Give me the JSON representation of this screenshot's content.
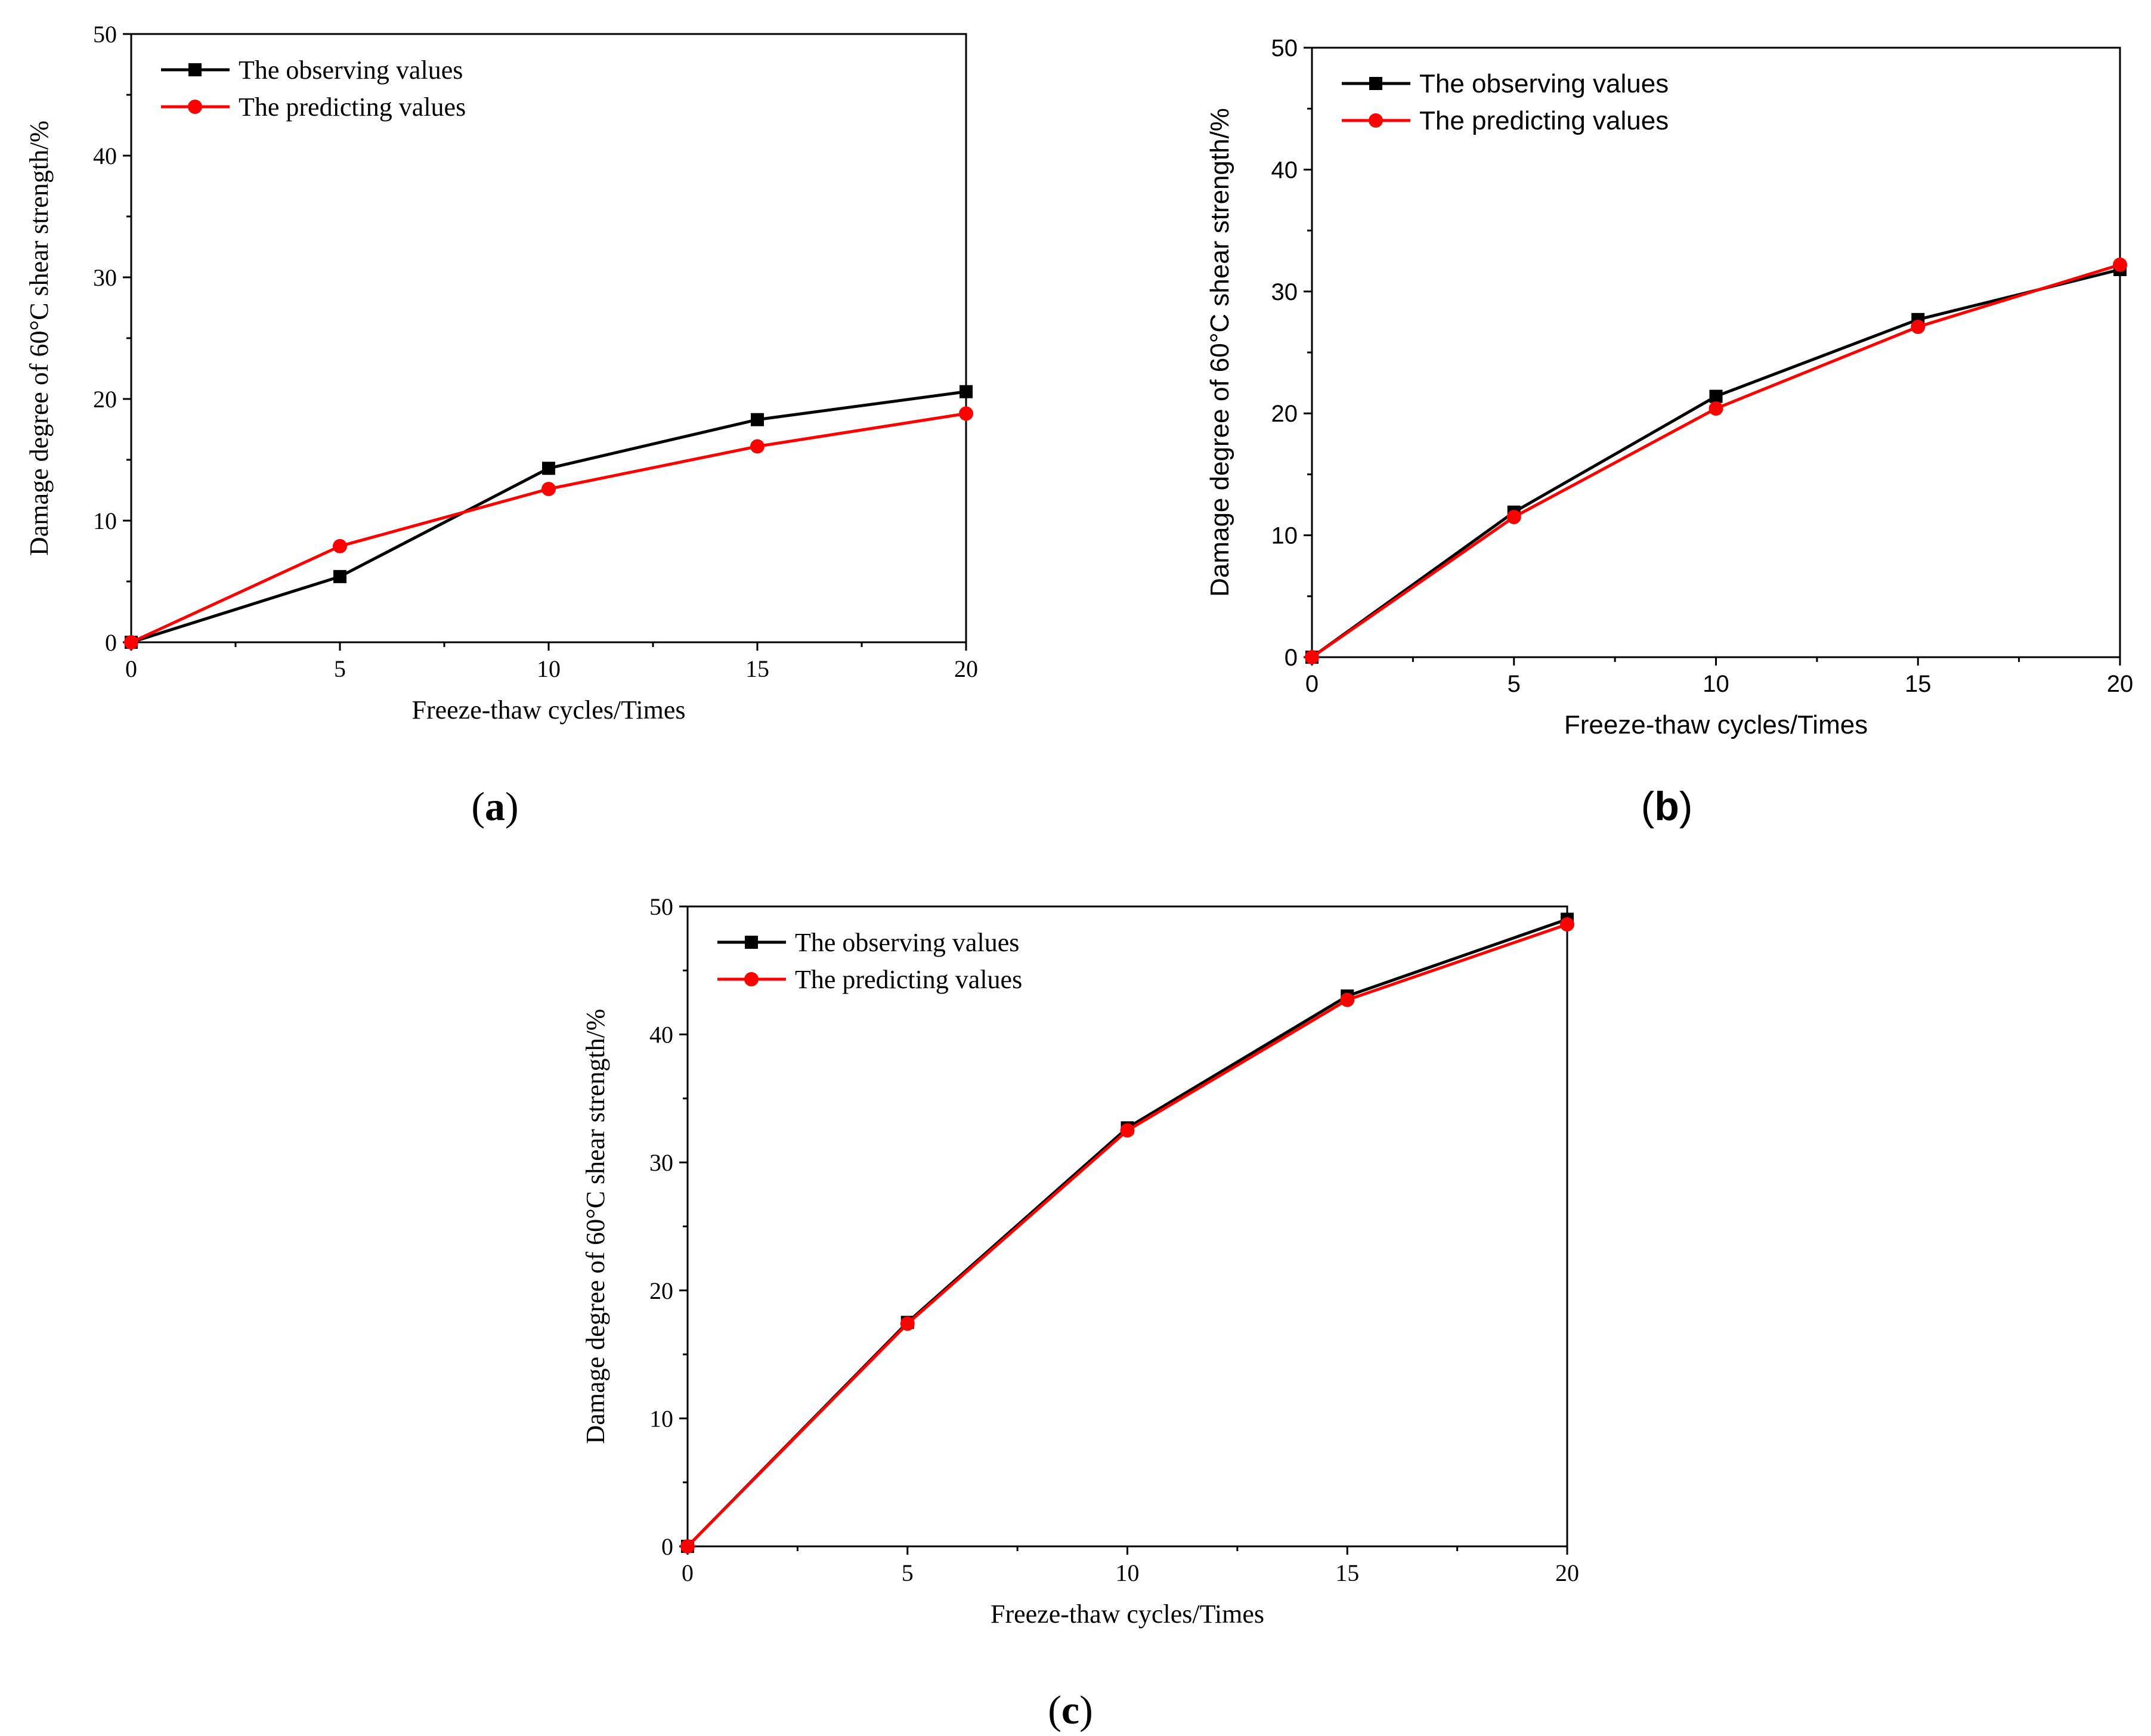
{
  "chart_data": [
    {
      "panel": "a",
      "type": "line",
      "x": [
        0,
        5,
        10,
        15,
        20
      ],
      "series": [
        {
          "name": "The observing values",
          "color": "#000000",
          "marker": "square",
          "values": [
            0,
            5.4,
            14.3,
            18.3,
            20.6
          ]
        },
        {
          "name": "The predicting values",
          "color": "#ff0000",
          "marker": "circle",
          "values": [
            0,
            7.9,
            12.6,
            16.1,
            18.8
          ]
        }
      ],
      "xlabel": "Freeze-thaw cycles/Times",
      "ylabel": "Damage degree of 60°C shear strength/%",
      "xlim": [
        0,
        20
      ],
      "ylim": [
        0,
        50
      ],
      "xticks": [
        "0",
        "5",
        "10",
        "15",
        "20"
      ],
      "yticks": [
        "0",
        "10",
        "20",
        "30",
        "40",
        "50"
      ],
      "legend": "top-left",
      "caption_letter": "a"
    },
    {
      "panel": "b",
      "type": "line",
      "x": [
        0,
        5,
        10,
        15,
        20
      ],
      "series": [
        {
          "name": "The observing values",
          "color": "#000000",
          "marker": "square",
          "values": [
            0,
            11.9,
            21.4,
            27.7,
            31.8
          ]
        },
        {
          "name": "The predicting values",
          "color": "#ff0000",
          "marker": "circle",
          "values": [
            0,
            11.5,
            20.4,
            27.1,
            32.2
          ]
        }
      ],
      "xlabel": "Freeze-thaw cycles/Times",
      "ylabel": "Damage degree of 60°C shear strength/%",
      "xlim": [
        0,
        20
      ],
      "ylim": [
        0,
        50
      ],
      "xticks": [
        "0",
        "5",
        "10",
        "15",
        "20"
      ],
      "yticks": [
        "0",
        "10",
        "20",
        "30",
        "40",
        "50"
      ],
      "legend": "top-left",
      "caption_letter": "b"
    },
    {
      "panel": "c",
      "type": "line",
      "x": [
        0,
        5,
        10,
        15,
        20
      ],
      "series": [
        {
          "name": "The observing values",
          "color": "#000000",
          "marker": "square",
          "values": [
            0,
            17.5,
            32.7,
            43.0,
            49.0
          ]
        },
        {
          "name": "The predicting values",
          "color": "#ff0000",
          "marker": "circle",
          "values": [
            0,
            17.4,
            32.5,
            42.7,
            48.6
          ]
        }
      ],
      "xlabel": "Freeze-thaw cycles/Times",
      "ylabel": "Damage degree of 60°C shear strength/%",
      "xlim": [
        0,
        20
      ],
      "ylim": [
        0,
        50
      ],
      "xticks": [
        "0",
        "5",
        "10",
        "15",
        "20"
      ],
      "yticks": [
        "0",
        "10",
        "20",
        "30",
        "40",
        "50"
      ],
      "legend": "top-left",
      "caption_letter": "c"
    }
  ]
}
